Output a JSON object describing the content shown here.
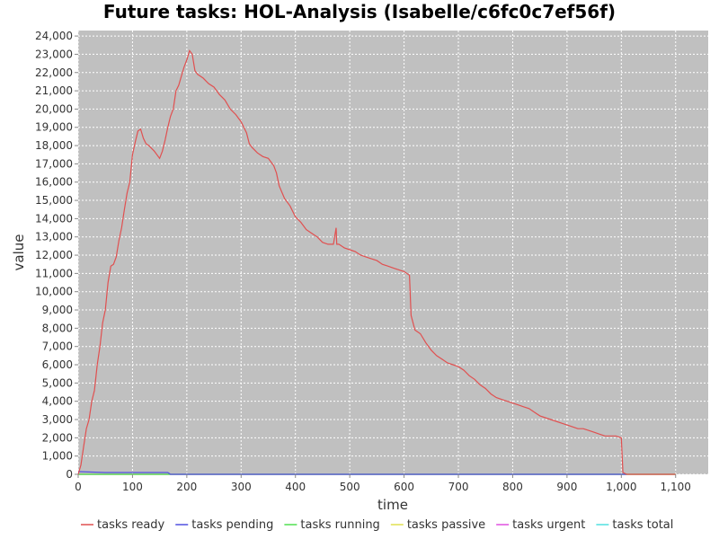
{
  "chart_data": {
    "type": "line",
    "title": "Future tasks: HOL-Analysis (Isabelle/c6fc0c7ef56f)",
    "x_label": "time",
    "y_label": "value",
    "xlim": [
      0,
      1160
    ],
    "ylim": [
      0,
      24300
    ],
    "xticks": [
      0,
      100,
      200,
      300,
      400,
      500,
      600,
      700,
      800,
      900,
      {
        "value": 1000,
        "label": "1,000"
      },
      {
        "value": 1100,
        "label": "1,100"
      }
    ],
    "yticks": [
      0,
      1000,
      2000,
      3000,
      4000,
      5000,
      6000,
      7000,
      8000,
      9000,
      10000,
      11000,
      12000,
      13000,
      14000,
      15000,
      16000,
      17000,
      18000,
      19000,
      20000,
      21000,
      22000,
      23000,
      24000
    ],
    "ytick_labels": [
      "0",
      "1,000",
      "2,000",
      "3,000",
      "4,000",
      "5,000",
      "6,000",
      "7,000",
      "8,000",
      "9,000",
      "10,000",
      "11,000",
      "12,000",
      "13,000",
      "14,000",
      "15,000",
      "16,000",
      "17,000",
      "18,000",
      "19,000",
      "20,000",
      "21,000",
      "22,000",
      "23,000",
      "24,000"
    ],
    "grid": true,
    "legend": "bottom",
    "series": [
      {
        "name": "tasks ready",
        "color": "#e05050",
        "x": [
          0,
          5,
          10,
          15,
          20,
          25,
          30,
          35,
          40,
          45,
          50,
          55,
          60,
          65,
          70,
          75,
          80,
          85,
          90,
          95,
          100,
          105,
          110,
          115,
          120,
          125,
          130,
          140,
          150,
          155,
          160,
          165,
          170,
          175,
          180,
          185,
          190,
          195,
          200,
          205,
          210,
          215,
          220,
          230,
          240,
          250,
          260,
          270,
          280,
          290,
          300,
          310,
          315,
          320,
          330,
          340,
          350,
          360,
          365,
          370,
          380,
          390,
          400,
          410,
          420,
          430,
          440,
          450,
          460,
          470,
          475,
          476,
          480,
          490,
          500,
          510,
          520,
          530,
          540,
          550,
          560,
          570,
          580,
          590,
          600,
          610,
          613,
          620,
          630,
          640,
          650,
          660,
          670,
          680,
          690,
          700,
          710,
          720,
          730,
          740,
          750,
          760,
          770,
          780,
          790,
          800,
          810,
          820,
          830,
          840,
          850,
          860,
          870,
          880,
          890,
          900,
          910,
          920,
          930,
          940,
          950,
          960,
          970,
          980,
          990,
          1000,
          1003,
          1010,
          1100
        ],
        "values": [
          0,
          500,
          1500,
          2500,
          3000,
          4000,
          4600,
          6000,
          7000,
          8300,
          9000,
          10500,
          11400,
          11500,
          11900,
          12800,
          13500,
          14500,
          15400,
          16000,
          17500,
          18200,
          18800,
          18900,
          18400,
          18100,
          18000,
          17700,
          17300,
          17700,
          18300,
          19000,
          19600,
          20000,
          21000,
          21300,
          21800,
          22300,
          22700,
          23200,
          23000,
          22100,
          21900,
          21700,
          21400,
          21200,
          20800,
          20500,
          20000,
          19700,
          19300,
          18700,
          18100,
          17900,
          17600,
          17400,
          17300,
          16900,
          16500,
          15800,
          15100,
          14700,
          14100,
          13800,
          13400,
          13200,
          13000,
          12700,
          12600,
          12600,
          13500,
          12600,
          12600,
          12400,
          12300,
          12200,
          12000,
          11900,
          11800,
          11700,
          11500,
          11400,
          11300,
          11200,
          11100,
          10900,
          8700,
          7900,
          7700,
          7200,
          6800,
          6500,
          6300,
          6100,
          6000,
          5900,
          5700,
          5400,
          5200,
          4900,
          4700,
          4400,
          4200,
          4100,
          4000,
          3900,
          3800,
          3700,
          3600,
          3400,
          3200,
          3100,
          3000,
          2900,
          2800,
          2700,
          2600,
          2500,
          2500,
          2400,
          2300,
          2200,
          2100,
          2100,
          2100,
          2000,
          100,
          0,
          0
        ]
      },
      {
        "name": "tasks pending",
        "color": "#5050e0",
        "x": [
          0,
          50,
          100,
          165,
          170,
          1010
        ],
        "values": [
          150,
          100,
          100,
          100,
          0,
          0
        ]
      },
      {
        "name": "tasks running",
        "color": "#50e050",
        "x": [
          0,
          1100
        ],
        "values": [
          0,
          0
        ]
      },
      {
        "name": "tasks passive",
        "color": "#e0e050",
        "x": [
          0,
          1100
        ],
        "values": [
          0,
          0
        ]
      },
      {
        "name": "tasks urgent",
        "color": "#e050e0",
        "x": [
          0,
          1100
        ],
        "values": [
          0,
          0
        ]
      },
      {
        "name": "tasks total",
        "color": "#50e0e0",
        "x": [
          0,
          1100
        ],
        "values": [
          0,
          0
        ]
      }
    ]
  }
}
